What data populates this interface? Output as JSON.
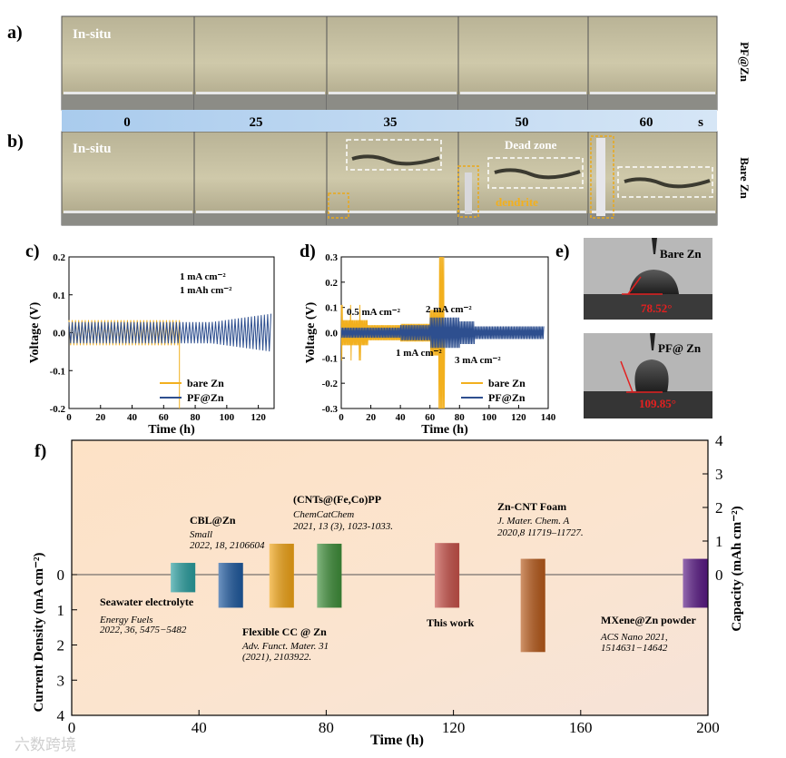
{
  "panel_labels": {
    "a": "a)",
    "b": "b)",
    "c": "c)",
    "d": "d)",
    "e": "e)",
    "f": "f)"
  },
  "photos": {
    "side_label_top": "PF@Zn",
    "side_label_bottom": "Bare Zn",
    "insitu_top": "In-situ",
    "insitu_bottom": "In-situ",
    "time_ticks": [
      "0",
      "25",
      "35",
      "50",
      "60"
    ],
    "time_unit": "s",
    "dead_zone": "Dead zone",
    "dendrite": "dendrite"
  },
  "contact": {
    "bare_label": "Bare Zn",
    "bare_angle": "78.52°",
    "pf_label": "PF@ Zn",
    "pf_angle": "109.85°"
  },
  "chart_data": [
    {
      "type": "line",
      "panel": "c",
      "xlabel": "Time (h)",
      "ylabel": "Voltage (V)",
      "xlim": [
        0,
        130
      ],
      "ylim": [
        -0.2,
        0.2
      ],
      "xticks": [
        0,
        20,
        40,
        60,
        80,
        100,
        120
      ],
      "yticks": [
        "0.2",
        "0.1",
        "0.0",
        "-0.1",
        "-0.2"
      ],
      "annotations": [
        "1 mA cm⁻²",
        "1 mAh cm⁻²"
      ],
      "series": [
        {
          "name": "bare Zn",
          "color": "#f2b01e",
          "amplitude_v": 0.033,
          "cycles": 34,
          "end_h": 70,
          "failure_v": -0.2
        },
        {
          "name": "PF@Zn",
          "color": "#2e4f8f",
          "amplitude_v": 0.028,
          "amplitude_end_v": 0.05,
          "cycles": 62,
          "end_h": 128
        }
      ]
    },
    {
      "type": "line",
      "panel": "d",
      "xlabel": "Time (h)",
      "ylabel": "Voltage (V)",
      "xlim": [
        0,
        140
      ],
      "ylim": [
        -0.3,
        0.3
      ],
      "xticks": [
        0,
        20,
        40,
        60,
        80,
        100,
        120,
        140
      ],
      "yticks": [
        "0.3",
        "0.2",
        "0.1",
        "0.0",
        "-0.1",
        "-0.2",
        "-0.3"
      ],
      "annotations": [
        "0.5 mA cm⁻²",
        "1 mA cm⁻²",
        "2 mA cm⁻²",
        "3 mA cm⁻²"
      ],
      "series": [
        {
          "name": "bare Zn",
          "color": "#f2b01e",
          "peak_v": 0.3,
          "end_h": 70
        },
        {
          "name": "PF@Zn",
          "color": "#2e4f8f",
          "amplitude_v": 0.04,
          "end_h": 137
        }
      ]
    },
    {
      "type": "bar",
      "panel": "f",
      "xlabel": "Time (h)",
      "ylabel_left": "Current Density (mA cm⁻²)",
      "ylabel_right": "Capacity (mAh cm⁻²)",
      "xlim": [
        0,
        200
      ],
      "xticks": [
        0,
        40,
        80,
        120,
        160,
        200
      ],
      "yticks_left": [
        0,
        1,
        2,
        3,
        4
      ],
      "yticks_right": [
        0,
        1,
        2,
        3,
        4
      ],
      "bars": [
        {
          "label": "Seawater electrolyte",
          "journal": "Energy Fuels",
          "ref": "2022, 36, 5475−5482",
          "time_h": 35,
          "current": 0.5,
          "capacity": 0.35,
          "color": "#2a9fa0"
        },
        {
          "label": "CBL@Zn",
          "journal": "Small",
          "ref": "2022, 18, 2106604",
          "time_h": 50,
          "current": 0.94,
          "capacity": 0.35,
          "color": "#1f5aa0"
        },
        {
          "label": "Flexible CC @ Zn",
          "journal": "Adv. Funct. Mater. 31",
          "ref": "(2021), 2103922.",
          "time_h": 66,
          "current": 0.94,
          "capacity": 0.92,
          "color": "#f2a516"
        },
        {
          "label": "(CNTs@(Fe,Co)PP",
          "journal": "ChemCatChem",
          "ref": "2021, 13 (3), 1023-1033.",
          "time_h": 81,
          "current": 0.94,
          "capacity": 0.92,
          "color": "#3f8f3a"
        },
        {
          "label": "This work",
          "journal": "",
          "ref": "",
          "time_h": 118,
          "current": 0.94,
          "capacity": 0.94,
          "color": "#c8524a"
        },
        {
          "label": "Zn-CNT Foam",
          "journal": "J. Mater. Chem. A",
          "ref": "2020,8 11719–11727.",
          "time_h": 145,
          "current": 2.2,
          "capacity": 0.47,
          "color": "#b85a1a"
        },
        {
          "label": "MXene@Zn powder",
          "journal": "ACS Nano 2021,",
          "ref": "1514631−14642",
          "time_h": 196,
          "current": 0.94,
          "capacity": 0.47,
          "color": "#5a1a86"
        }
      ]
    }
  ],
  "watermark": "六数跨境"
}
